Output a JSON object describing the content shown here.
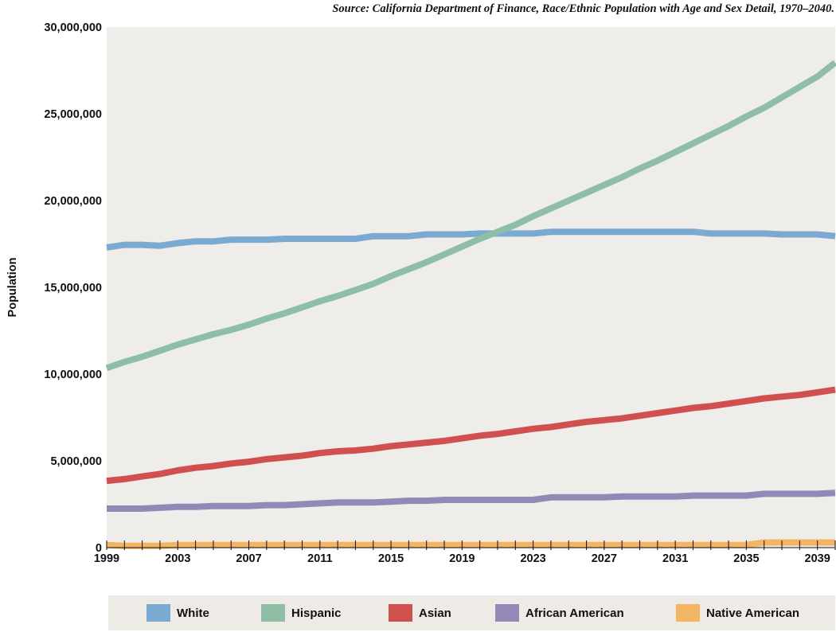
{
  "source": "Source: California Department of Finance, Race/Ethnic Population with Age and Sex Detail, 1970–2040.",
  "colors": {
    "plot_bg": "#efede9",
    "white": "#7aa9d1",
    "hispanic": "#8fbea6",
    "asian": "#d0504f",
    "african_american": "#9389b9",
    "native_american": "#f3b463"
  },
  "chart_data": {
    "type": "line",
    "title": "",
    "ylabel": "Population",
    "xlabel": "",
    "ylim": [
      0,
      30000000
    ],
    "xlim": [
      1999,
      2040
    ],
    "yticks": [
      0,
      5000000,
      10000000,
      15000000,
      20000000,
      25000000,
      30000000
    ],
    "ytick_labels": [
      "0",
      "5,000,000",
      "10,000,000",
      "15,000,000",
      "20,000,000",
      "25,000,000",
      "30,000,000"
    ],
    "xtick_labels": [
      "1999",
      "2003",
      "2007",
      "2011",
      "2015",
      "2019",
      "2023",
      "2027",
      "2031",
      "2035",
      "2039"
    ],
    "grid": false,
    "legend_position": "bottom",
    "x": [
      1999,
      2000,
      2001,
      2002,
      2003,
      2004,
      2005,
      2006,
      2007,
      2008,
      2009,
      2010,
      2011,
      2012,
      2013,
      2014,
      2015,
      2016,
      2017,
      2018,
      2019,
      2020,
      2021,
      2022,
      2023,
      2024,
      2025,
      2026,
      2027,
      2028,
      2029,
      2030,
      2031,
      2032,
      2033,
      2034,
      2035,
      2036,
      2037,
      2038,
      2039,
      2040
    ],
    "series": [
      {
        "name": "White",
        "color_key": "white",
        "values": [
          17300000,
          17450000,
          17450000,
          17400000,
          17550000,
          17650000,
          17650000,
          17750000,
          17750000,
          17750000,
          17800000,
          17800000,
          17800000,
          17800000,
          17800000,
          17950000,
          17950000,
          17950000,
          18050000,
          18050000,
          18050000,
          18100000,
          18100000,
          18100000,
          18100000,
          18200000,
          18200000,
          18200000,
          18200000,
          18200000,
          18200000,
          18200000,
          18200000,
          18200000,
          18100000,
          18100000,
          18100000,
          18100000,
          18050000,
          18050000,
          18050000,
          17950000
        ]
      },
      {
        "name": "Hispanic",
        "color_key": "hispanic",
        "values": [
          10350000,
          10700000,
          11000000,
          11350000,
          11700000,
          12000000,
          12300000,
          12550000,
          12850000,
          13200000,
          13500000,
          13850000,
          14200000,
          14500000,
          14850000,
          15200000,
          15650000,
          16050000,
          16450000,
          16900000,
          17350000,
          17800000,
          18200000,
          18600000,
          19100000,
          19550000,
          20000000,
          20450000,
          20900000,
          21350000,
          21850000,
          22300000,
          22800000,
          23300000,
          23800000,
          24300000,
          24850000,
          25350000,
          25950000,
          26550000,
          27150000,
          27950000
        ]
      },
      {
        "name": "Asian",
        "color_key": "asian",
        "values": [
          3850000,
          3950000,
          4100000,
          4250000,
          4450000,
          4600000,
          4700000,
          4850000,
          4950000,
          5100000,
          5200000,
          5300000,
          5450000,
          5550000,
          5600000,
          5700000,
          5850000,
          5950000,
          6050000,
          6150000,
          6300000,
          6450000,
          6550000,
          6700000,
          6850000,
          6950000,
          7100000,
          7250000,
          7350000,
          7450000,
          7600000,
          7750000,
          7900000,
          8050000,
          8150000,
          8300000,
          8450000,
          8600000,
          8700000,
          8800000,
          8950000,
          9100000
        ]
      },
      {
        "name": "African American",
        "color_key": "african_american",
        "values": [
          2250000,
          2250000,
          2250000,
          2300000,
          2350000,
          2350000,
          2400000,
          2400000,
          2400000,
          2450000,
          2450000,
          2500000,
          2550000,
          2600000,
          2600000,
          2600000,
          2650000,
          2700000,
          2700000,
          2750000,
          2750000,
          2750000,
          2750000,
          2750000,
          2750000,
          2900000,
          2900000,
          2900000,
          2900000,
          2950000,
          2950000,
          2950000,
          2950000,
          3000000,
          3000000,
          3000000,
          3000000,
          3100000,
          3100000,
          3100000,
          3100000,
          3150000
        ]
      },
      {
        "name": "Native American",
        "color_key": "native_american",
        "values": [
          150000,
          100000,
          100000,
          100000,
          150000,
          150000,
          150000,
          150000,
          150000,
          150000,
          150000,
          150000,
          150000,
          150000,
          150000,
          150000,
          150000,
          150000,
          150000,
          150000,
          150000,
          150000,
          150000,
          150000,
          150000,
          150000,
          150000,
          150000,
          150000,
          150000,
          150000,
          150000,
          150000,
          150000,
          150000,
          150000,
          150000,
          300000,
          300000,
          300000,
          300000,
          300000
        ]
      }
    ]
  }
}
